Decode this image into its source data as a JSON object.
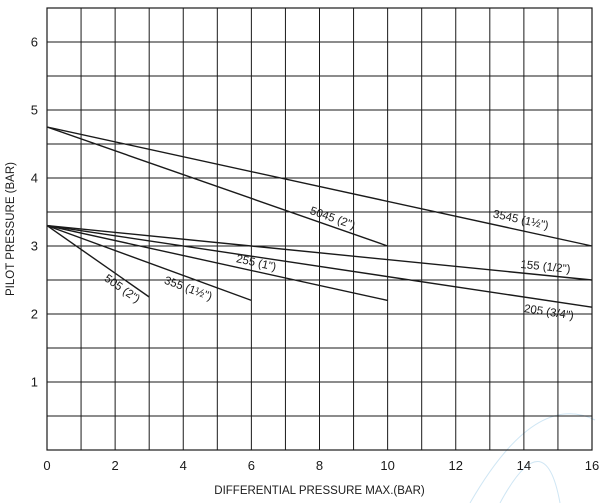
{
  "chart_data": {
    "type": "line",
    "title": "",
    "xlabel": "DIFFERENTIAL PRESSURE MAX.(BAR)",
    "ylabel": "PILOT PRESSURE (BAR)",
    "xlim": [
      0,
      16
    ],
    "ylim": [
      0,
      6.5
    ],
    "x_ticks": [
      0,
      2,
      4,
      6,
      8,
      10,
      12,
      14,
      16
    ],
    "y_ticks": [
      1,
      2,
      3,
      4,
      5,
      6
    ],
    "x_grid_step": 1,
    "y_grid_step": 0.5,
    "grid": true,
    "series": [
      {
        "name": "3545 (1½\")",
        "x": [
          0,
          16
        ],
        "y": [
          4.75,
          3.0
        ]
      },
      {
        "name": "5045 (2\")",
        "x": [
          0,
          10
        ],
        "y": [
          4.75,
          3.0
        ]
      },
      {
        "name": "155 (1/2\")",
        "x": [
          0,
          16
        ],
        "y": [
          3.3,
          2.5
        ]
      },
      {
        "name": "205 (3/4\")",
        "x": [
          0,
          16
        ],
        "y": [
          3.3,
          2.1
        ]
      },
      {
        "name": "255 (1\")",
        "x": [
          0,
          10
        ],
        "y": [
          3.3,
          2.2
        ]
      },
      {
        "name": "355 (1½\")",
        "x": [
          0,
          6
        ],
        "y": [
          3.3,
          2.2
        ]
      },
      {
        "name": "505 (2\")",
        "x": [
          0,
          3
        ],
        "y": [
          3.3,
          2.25
        ]
      }
    ]
  }
}
